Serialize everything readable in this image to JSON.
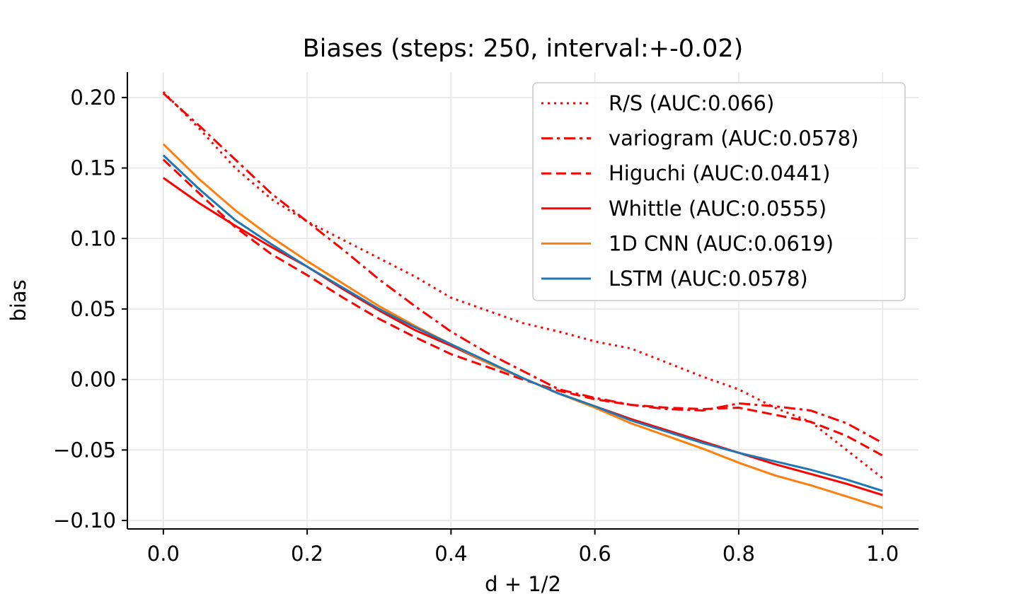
{
  "chart_data": {
    "type": "line",
    "title": "Biases (steps: 250, interval:+-0.02)",
    "xlabel": "d + 1/2",
    "ylabel": "bias",
    "xlim": [
      -0.05,
      1.05
    ],
    "ylim": [
      -0.106,
      0.218
    ],
    "xticks": [
      0.0,
      0.2,
      0.4,
      0.6,
      0.8,
      1.0
    ],
    "xtick_labels": [
      "0.0",
      "0.2",
      "0.4",
      "0.6",
      "0.8",
      "1.0"
    ],
    "yticks": [
      -0.1,
      -0.05,
      0.0,
      0.05,
      0.1,
      0.15,
      0.2
    ],
    "ytick_labels": [
      "−0.10",
      "−0.05",
      "0.00",
      "0.05",
      "0.10",
      "0.15",
      "0.20"
    ],
    "grid": true,
    "legend_position": "top-right",
    "x": [
      0.0,
      0.05,
      0.1,
      0.15,
      0.2,
      0.25,
      0.3,
      0.35,
      0.4,
      0.45,
      0.5,
      0.55,
      0.6,
      0.65,
      0.7,
      0.75,
      0.8,
      0.85,
      0.9,
      0.95,
      1.0
    ],
    "series": [
      {
        "name": "R/S (AUC:0.066)",
        "color": "#ff0000",
        "style": "dotted",
        "values": [
          0.204,
          0.178,
          0.15,
          0.128,
          0.112,
          0.099,
          0.086,
          0.073,
          0.058,
          0.049,
          0.04,
          0.034,
          0.027,
          0.022,
          0.012,
          0.002,
          -0.007,
          -0.02,
          -0.03,
          -0.05,
          -0.07
        ]
      },
      {
        "name": "variogram (AUC:0.0578)",
        "color": "#ff0000",
        "style": "dashdot",
        "values": [
          0.203,
          0.18,
          0.156,
          0.132,
          0.112,
          0.092,
          0.071,
          0.052,
          0.034,
          0.019,
          0.006,
          -0.007,
          -0.013,
          -0.018,
          -0.021,
          -0.022,
          -0.017,
          -0.019,
          -0.022,
          -0.031,
          -0.045
        ]
      },
      {
        "name": "Higuchi (AUC:0.0441)",
        "color": "#ff0000",
        "style": "dashed",
        "values": [
          0.156,
          0.132,
          0.108,
          0.089,
          0.074,
          0.058,
          0.043,
          0.03,
          0.018,
          0.009,
          0.0,
          -0.008,
          -0.014,
          -0.018,
          -0.02,
          -0.021,
          -0.02,
          -0.025,
          -0.03,
          -0.04,
          -0.054
        ]
      },
      {
        "name": "Whittle (AUC:0.0555)",
        "color": "#ff0000",
        "style": "solid",
        "values": [
          0.143,
          0.125,
          0.109,
          0.094,
          0.08,
          0.064,
          0.049,
          0.035,
          0.024,
          0.012,
          0.001,
          -0.01,
          -0.019,
          -0.028,
          -0.036,
          -0.044,
          -0.052,
          -0.06,
          -0.067,
          -0.074,
          -0.082
        ]
      },
      {
        "name": "1D CNN (AUC:0.0619)",
        "color": "#ff7f0e",
        "style": "solid",
        "values": [
          0.167,
          0.142,
          0.12,
          0.101,
          0.084,
          0.068,
          0.052,
          0.038,
          0.025,
          0.012,
          0.001,
          -0.01,
          -0.02,
          -0.031,
          -0.04,
          -0.049,
          -0.059,
          -0.068,
          -0.075,
          -0.083,
          -0.091
        ]
      },
      {
        "name": "LSTM (AUC:0.0578)",
        "color": "#1f77b4",
        "style": "solid",
        "values": [
          0.159,
          0.135,
          0.113,
          0.096,
          0.08,
          0.065,
          0.05,
          0.037,
          0.025,
          0.013,
          0.001,
          -0.01,
          -0.019,
          -0.029,
          -0.037,
          -0.045,
          -0.052,
          -0.058,
          -0.064,
          -0.071,
          -0.079
        ]
      }
    ]
  }
}
